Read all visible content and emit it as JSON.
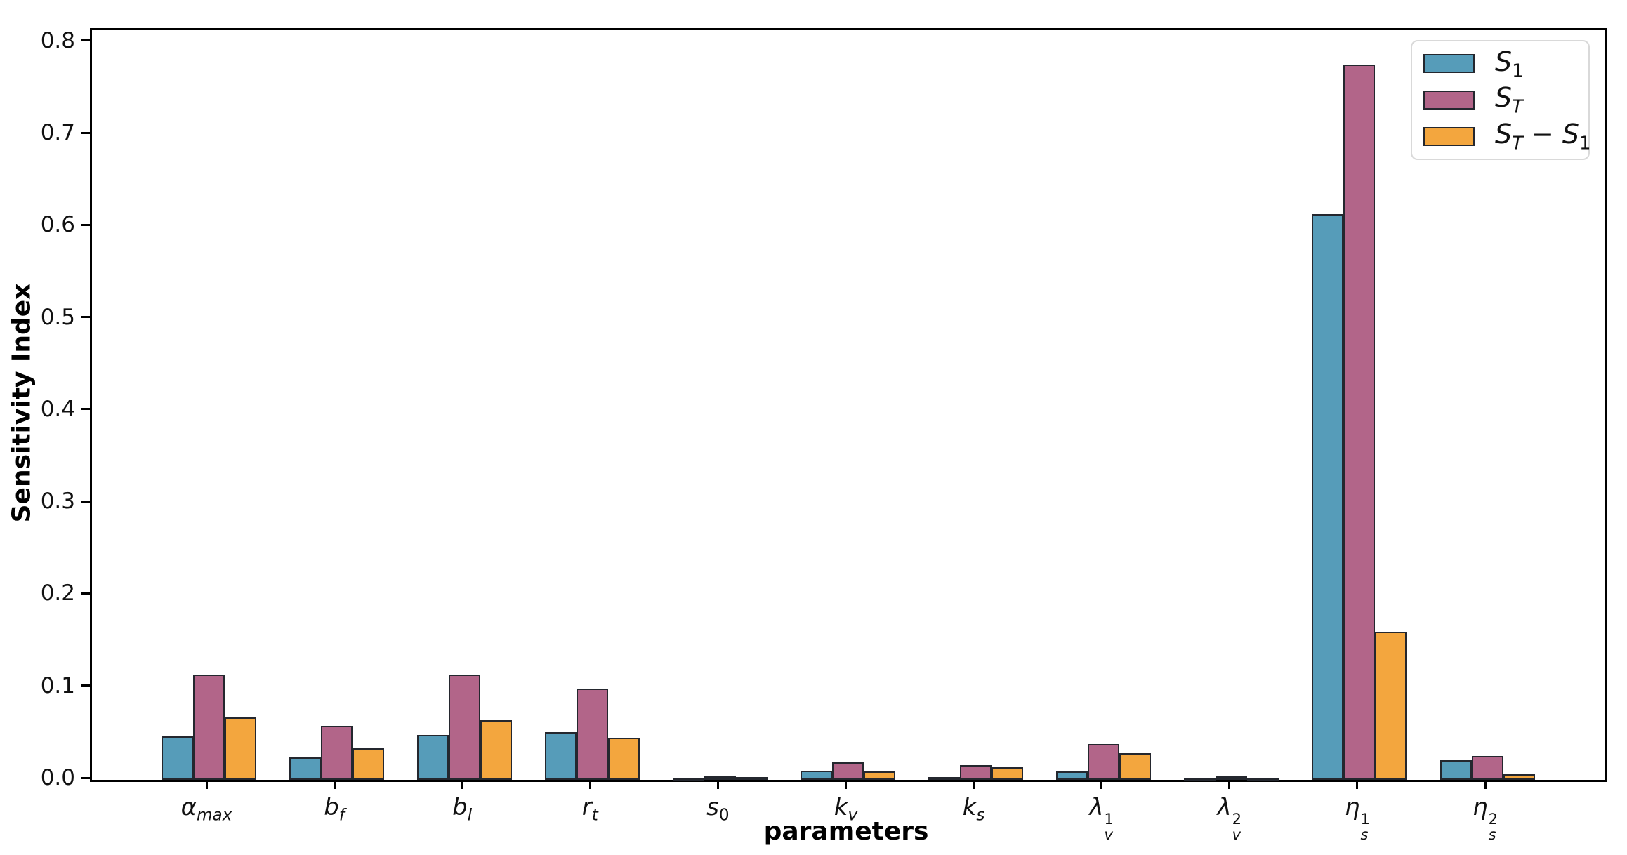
{
  "chart_data": {
    "type": "bar",
    "title": "",
    "xlabel": "parameters",
    "ylabel": "Sensitivity Index",
    "ylim": [
      0,
      0.8137
    ],
    "yticks": [
      "0.0",
      "0.1",
      "0.2",
      "0.3",
      "0.4",
      "0.5",
      "0.6",
      "0.7",
      "0.8"
    ],
    "grid": false,
    "background": "#ffffff",
    "bar_edge_color": "#24272e",
    "legend": {
      "position": "upper right",
      "edge_color": "#d9d9d9",
      "entries": [
        "S_1",
        "S_T",
        "S_T - S_1"
      ]
    },
    "categories": [
      {
        "label": "alpha_max",
        "parts": [
          {
            "t": "α",
            "sub": "max"
          }
        ]
      },
      {
        "label": "b_f",
        "parts": [
          {
            "t": "b",
            "sub": "f"
          }
        ]
      },
      {
        "label": "b_l",
        "parts": [
          {
            "t": "b",
            "sub": "l"
          }
        ]
      },
      {
        "label": "r_t",
        "parts": [
          {
            "t": "r",
            "sub": "t"
          }
        ]
      },
      {
        "label": "s_0",
        "parts": [
          {
            "t": "s",
            "sub": "0"
          }
        ]
      },
      {
        "label": "k_v",
        "parts": [
          {
            "t": "k",
            "sub": "v"
          }
        ]
      },
      {
        "label": "k_s",
        "parts": [
          {
            "t": "k",
            "sub": "s"
          }
        ]
      },
      {
        "label": "lambda_v^1",
        "parts": [
          {
            "t": "λ",
            "sub": "v",
            "sup": "1"
          }
        ]
      },
      {
        "label": "lambda_v^2",
        "parts": [
          {
            "t": "λ",
            "sub": "v",
            "sup": "2"
          }
        ]
      },
      {
        "label": "eta_s^1",
        "parts": [
          {
            "t": "η",
            "sub": "s",
            "sup": "1"
          }
        ]
      },
      {
        "label": "eta_s^2",
        "parts": [
          {
            "t": "η",
            "sub": "s",
            "sup": "2"
          }
        ]
      }
    ],
    "series": [
      {
        "name": "S1",
        "color": "#569CB9",
        "label_parts": [
          {
            "t": "S",
            "sub": "1"
          }
        ],
        "values": [
          0.047,
          0.024,
          0.049,
          0.052,
          0.002,
          0.01,
          0.003,
          0.009,
          0.002,
          0.614,
          0.021
        ]
      },
      {
        "name": "ST",
        "color": "#B26589",
        "label_parts": [
          {
            "t": "S",
            "sub": "T"
          }
        ],
        "values": [
          0.114,
          0.059,
          0.114,
          0.099,
          0.004,
          0.019,
          0.016,
          0.039,
          0.004,
          0.776,
          0.026
        ]
      },
      {
        "name": "ST-S1",
        "color": "#F3A63E",
        "label_parts": [
          {
            "t": "S",
            "sub": "T"
          },
          {
            "t": " − "
          },
          {
            "t": "S",
            "sub": "1"
          }
        ],
        "values": [
          0.068,
          0.034,
          0.065,
          0.046,
          0.003,
          0.009,
          0.014,
          0.029,
          0.002,
          0.161,
          0.006
        ]
      }
    ]
  }
}
